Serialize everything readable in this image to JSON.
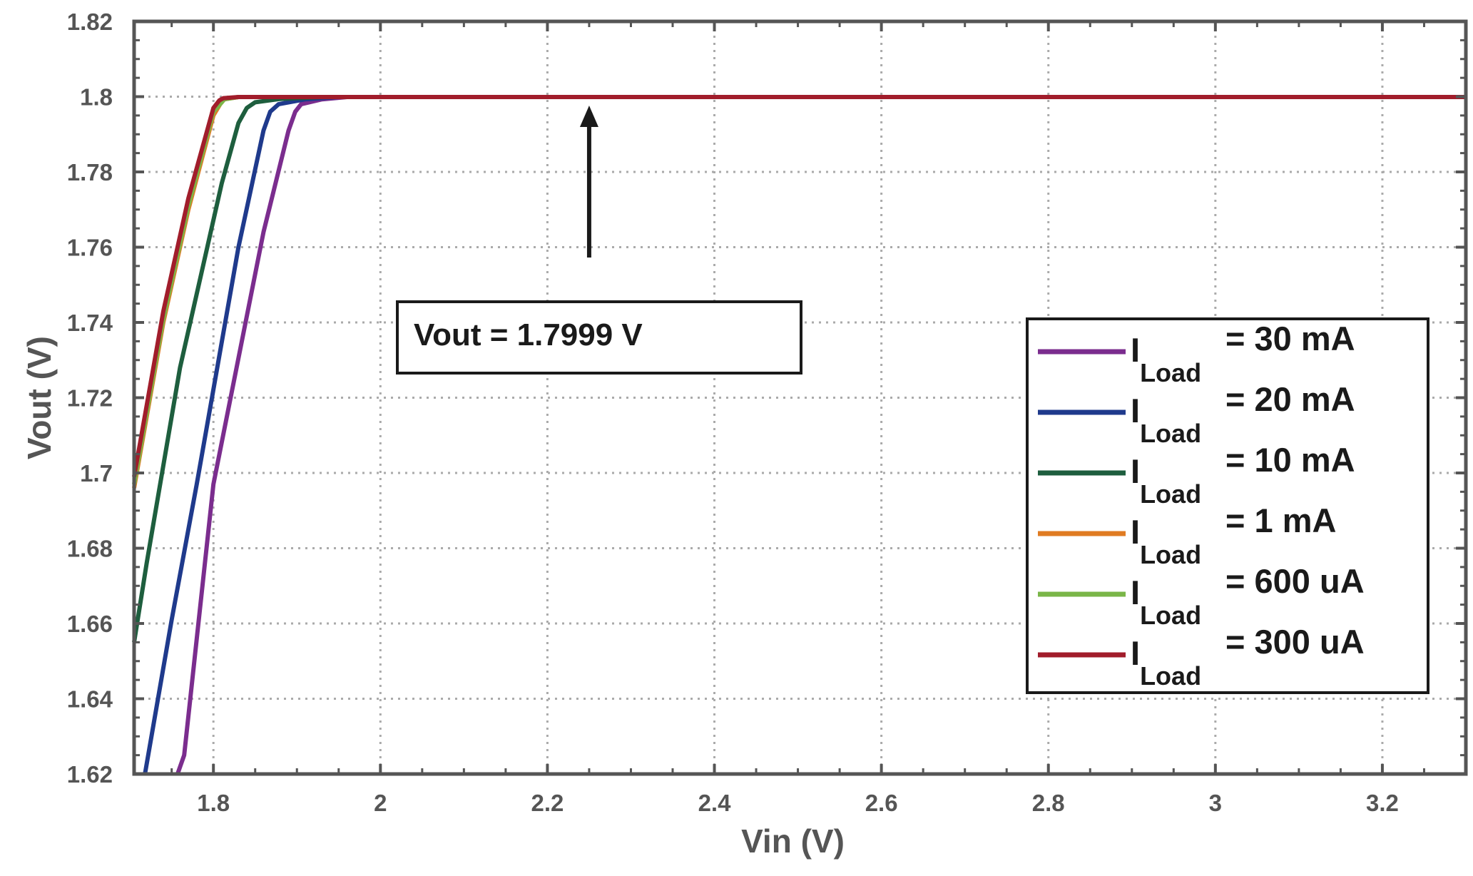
{
  "chart_data": {
    "type": "line",
    "xlabel": "Vin (V)",
    "ylabel": "Vout (V)",
    "xlim": [
      1.705,
      3.3
    ],
    "ylim": [
      1.62,
      1.82
    ],
    "xticks": [
      1.8,
      2.0,
      2.2,
      2.4,
      2.6,
      2.8,
      3.0,
      3.2
    ],
    "xtick_labels": [
      "1.8",
      "2",
      "2.2",
      "2.4",
      "2.6",
      "2.8",
      "3",
      "3.2"
    ],
    "yticks": [
      1.62,
      1.64,
      1.66,
      1.68,
      1.7,
      1.72,
      1.74,
      1.76,
      1.78,
      1.8,
      1.82
    ],
    "ytick_labels": [
      "1.62",
      "1.64",
      "1.66",
      "1.68",
      "1.7",
      "1.72",
      "1.74",
      "1.76",
      "1.78",
      "1.8",
      "1.82"
    ],
    "grid": true,
    "legend_position": "right",
    "annotation": {
      "text": "Vout = 1.7999 V",
      "x": 2.25,
      "y": 1.7999,
      "arrow": true
    },
    "series": [
      {
        "name_main": "I",
        "name_sub": "Load",
        "name_rest": " = 30 mA",
        "color": "#7b2d8e",
        "x": [
          1.757,
          1.765,
          1.8,
          1.86,
          1.89,
          1.898,
          1.905,
          1.93,
          1.96,
          3.3
        ],
        "y": [
          1.62,
          1.625,
          1.697,
          1.764,
          1.791,
          1.796,
          1.798,
          1.7993,
          1.7999,
          1.7999
        ]
      },
      {
        "name_main": "I",
        "name_sub": "Load",
        "name_rest": " = 20 mA",
        "color": "#1f3a8c",
        "x": [
          1.718,
          1.75,
          1.78,
          1.83,
          1.86,
          1.868,
          1.878,
          1.91,
          1.95,
          3.3
        ],
        "y": [
          1.62,
          1.661,
          1.697,
          1.76,
          1.791,
          1.796,
          1.798,
          1.7993,
          1.7999,
          1.7999
        ]
      },
      {
        "name_main": "I",
        "name_sub": "Load",
        "name_rest": " = 10 mA",
        "color": "#1e5e3e",
        "x": [
          1.705,
          1.72,
          1.76,
          1.81,
          1.83,
          1.84,
          1.85,
          1.88,
          1.93,
          3.3
        ],
        "y": [
          1.655,
          1.676,
          1.728,
          1.777,
          1.793,
          1.797,
          1.7985,
          1.7994,
          1.7999,
          1.7999
        ]
      },
      {
        "name_main": "I",
        "name_sub": "Load",
        "name_rest": " = 1 mA",
        "color": "#e07b22",
        "x": [
          1.705,
          1.74,
          1.77,
          1.8,
          1.808,
          1.813,
          1.83,
          3.3
        ],
        "y": [
          1.696,
          1.74,
          1.77,
          1.795,
          1.798,
          1.7993,
          1.7999,
          1.7999
        ]
      },
      {
        "name_main": "I",
        "name_sub": "Load",
        "name_rest": " = 600 uA",
        "color": "#7ab648",
        "x": [
          1.705,
          1.74,
          1.77,
          1.8,
          1.808,
          1.813,
          1.83,
          3.3
        ],
        "y": [
          1.697,
          1.741,
          1.771,
          1.796,
          1.798,
          1.7993,
          1.7999,
          1.7999
        ]
      },
      {
        "name_main": "I",
        "name_sub": "Load",
        "name_rest": " = 300 uA",
        "color": "#a11d2b",
        "x": [
          1.705,
          1.74,
          1.77,
          1.8,
          1.807,
          1.812,
          1.83,
          3.3
        ],
        "y": [
          1.699,
          1.743,
          1.773,
          1.797,
          1.799,
          1.7996,
          1.7999,
          1.7999
        ]
      }
    ]
  }
}
